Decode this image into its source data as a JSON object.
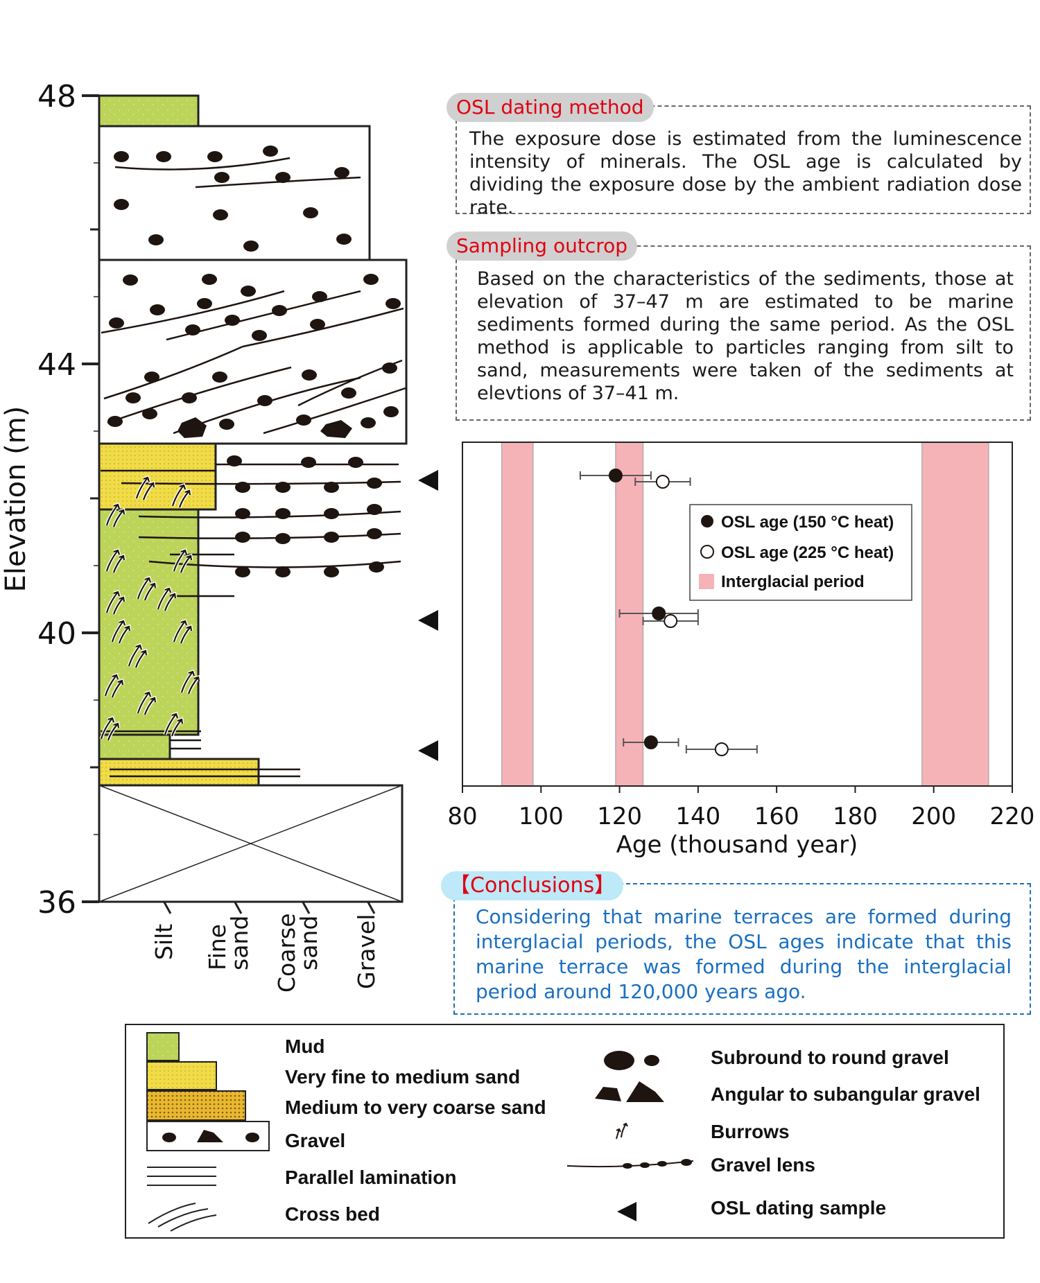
{
  "column": {
    "y_axis_title": "Elevation (m)",
    "y_ticks": [
      "48",
      "44",
      "40",
      "36"
    ],
    "grain_labels": [
      {
        "lines": [
          "Silt"
        ]
      },
      {
        "lines": [
          "Fine",
          "sand"
        ]
      },
      {
        "lines": [
          "Coarse",
          "sand"
        ]
      },
      {
        "lines": [
          "Gravel"
        ]
      }
    ]
  },
  "osl_box": {
    "title": "OSL dating method",
    "text": "The exposure dose is estimated from the luminescence intensity of minerals. The OSL age is calculated by dividing the exposure dose by the ambient radiation dose rate."
  },
  "sampling_box": {
    "title": "Sampling outcrop",
    "text": "Based on the characteristics of the sediments, those at elevation of 37–47 m are estimated to be marine sediments formed during the same period. As the OSL method is applicable to particles ranging from silt to sand, measurements were taken of the sediments at elevtions of 37–41 m."
  },
  "conclusions": {
    "title": "【Conclusions】",
    "text": "Considering that marine terraces are formed during interglacial periods, the OSL ages indicate that this marine terrace was formed during the interglacial period around 120,000 years ago.",
    "color": "#1a6fc0"
  },
  "chart_data": {
    "type": "scatter",
    "xlabel": "Age (thousand year)",
    "xlim": [
      80,
      220
    ],
    "x_ticks": [
      "80",
      "100",
      "120",
      "140",
      "160",
      "180",
      "200",
      "220"
    ],
    "series": [
      {
        "name": "OSL age (150 °C heat)",
        "marker": "filled",
        "points": [
          {
            "age": 119,
            "err_low": 110,
            "err_high": 128
          },
          {
            "age": 130,
            "err_low": 120,
            "err_high": 140
          },
          {
            "age": 128,
            "err_low": 121,
            "err_high": 135
          }
        ]
      },
      {
        "name": "OSL age (225 °C heat)",
        "marker": "open",
        "points": [
          {
            "age": 131,
            "err_low": 124,
            "err_high": 138
          },
          {
            "age": 133,
            "err_low": 126,
            "err_high": 140
          },
          {
            "age": 146,
            "err_low": 137,
            "err_high": 155
          }
        ]
      }
    ],
    "interglacial_periods": [
      [
        90,
        98
      ],
      [
        119,
        126
      ],
      [
        197,
        214
      ]
    ],
    "interglacial_label": "Interglacial period",
    "interglacial_color": "#f5b3b8"
  },
  "legend": {
    "rows": [
      {
        "label": "Mud",
        "icon": "mud-swatch"
      },
      {
        "label": "Very fine to medium sand",
        "icon": "fine-sand-swatch"
      },
      {
        "label": "Medium to very coarse sand",
        "icon": "coarse-sand-swatch"
      },
      {
        "label": "Gravel",
        "icon": "gravel-swatch"
      },
      {
        "label": "Parallel lamination",
        "icon": "parallel-lamination-icon"
      },
      {
        "label": "Cross bed",
        "icon": "cross-bed-icon"
      },
      {
        "label": "Subround to round gravel",
        "icon": "round-gravel-icon"
      },
      {
        "label": "Angular to subangular gravel",
        "icon": "angular-gravel-icon"
      },
      {
        "label": "Burrows",
        "icon": "burrow-icon"
      },
      {
        "label": "Gravel lens",
        "icon": "gravel-lens-icon"
      },
      {
        "label": "OSL dating sample",
        "icon": "osl-sample-triangle-icon"
      }
    ]
  },
  "colors": {
    "mud": "#bdd45a",
    "fine_sand": "#f0dc48",
    "coarse_sand": "#e8b830",
    "gravel_dot": "#1e1410",
    "red_title": "#e00010"
  }
}
